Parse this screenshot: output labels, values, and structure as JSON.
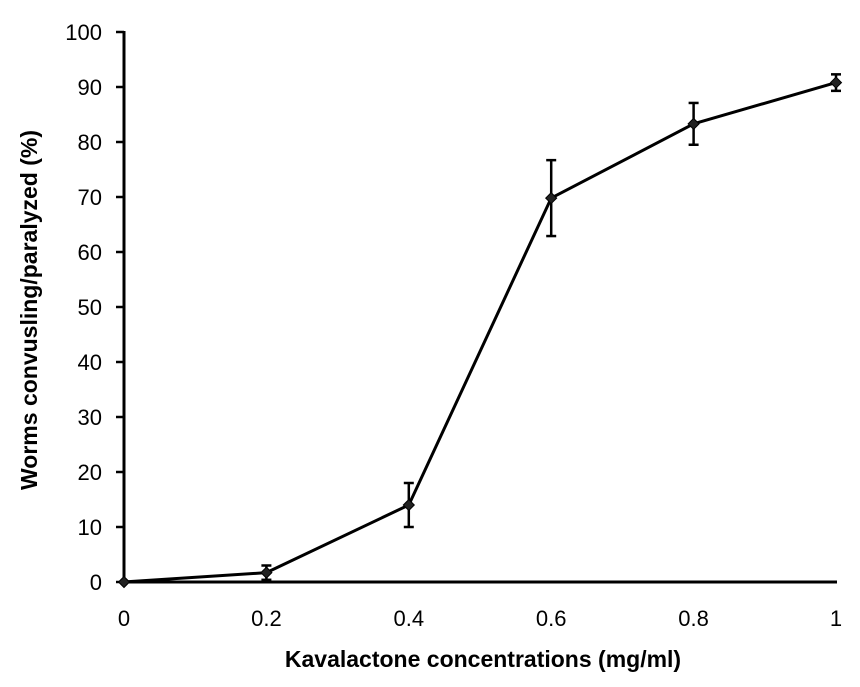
{
  "chart_data": {
    "type": "line",
    "title": "",
    "xlabel": "Kavalactone concentrations (mg/ml)",
    "ylabel": "Worms convusling/paralyzed (%)",
    "xlim": [
      0,
      1
    ],
    "ylim": [
      0,
      100
    ],
    "x_ticks": [
      0,
      0.2,
      0.4,
      0.6,
      0.8,
      1
    ],
    "x_tick_labels": [
      "0",
      "0.2",
      "0.4",
      "0.6",
      "0.8",
      "1"
    ],
    "y_ticks": [
      0,
      10,
      20,
      30,
      40,
      50,
      60,
      70,
      80,
      90,
      100
    ],
    "y_tick_labels": [
      "0",
      "10",
      "20",
      "30",
      "40",
      "50",
      "60",
      "70",
      "80",
      "90",
      "100"
    ],
    "grid": false,
    "legend": "none",
    "marker": "diamond",
    "line_color": "#000000",
    "series": [
      {
        "x": [
          0,
          0.2,
          0.4,
          0.6,
          0.8,
          1
        ],
        "values": [
          0,
          1.7,
          14.0,
          69.8,
          83.3,
          90.8
        ],
        "error": [
          0,
          1.3,
          4.0,
          6.9,
          3.8,
          1.5
        ]
      }
    ]
  }
}
